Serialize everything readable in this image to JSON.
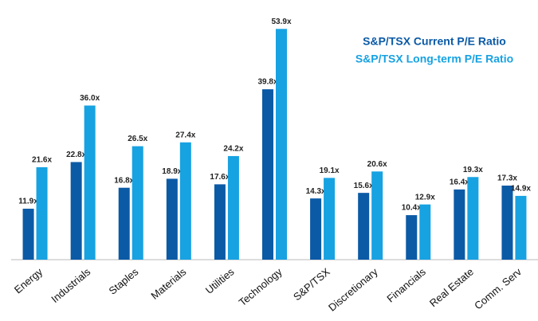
{
  "chart_data": {
    "type": "bar",
    "categories": [
      "Energy",
      "Industrials",
      "Staples",
      "Materials",
      "Utilities",
      "Technology",
      "S&P/TSX",
      "Discretionary",
      "Financials",
      "Real Estate",
      "Comm. Serv"
    ],
    "series": [
      {
        "name": "S&P/TSX Current P/E Ratio",
        "color": "#0b5aa6",
        "values": [
          11.9,
          22.8,
          16.8,
          18.9,
          17.6,
          39.8,
          14.3,
          15.6,
          10.4,
          16.4,
          17.3
        ],
        "value_labels": [
          "11.9x",
          "22.8x",
          "16.8x",
          "18.9x",
          "17.6x",
          "39.8x",
          "14.3x",
          "15.6x",
          "10.4x",
          "16.4x",
          "17.3x"
        ]
      },
      {
        "name": "S&P/TSX Long-term P/E Ratio",
        "color": "#17a2e2",
        "values": [
          21.6,
          36.0,
          26.5,
          27.4,
          24.2,
          53.9,
          19.1,
          20.6,
          12.9,
          19.3,
          14.9
        ],
        "value_labels": [
          "21.6x",
          "36.0x",
          "26.5x",
          "27.4x",
          "24.2x",
          "53.9x",
          "19.1x",
          "20.6x",
          "12.9x",
          "19.3x",
          "14.9x"
        ]
      }
    ],
    "ylim": [
      0,
      56
    ],
    "legend": "top-right"
  }
}
